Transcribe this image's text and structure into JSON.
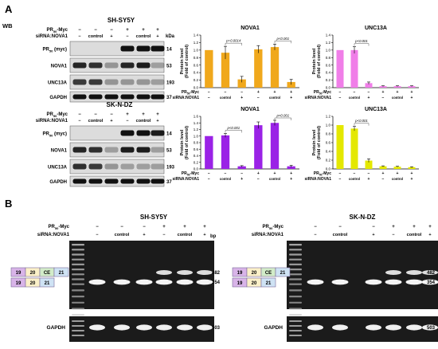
{
  "panel_a": {
    "label": "A",
    "wb_label": "WB",
    "kda_label": "kDa",
    "row_pr": "PR",
    "row_pr_sub": "50",
    "row_pr_tail": "-Myc",
    "row_sirna": "siRNA:NOVA1",
    "cols_pr": [
      "−",
      "−",
      "−",
      "+",
      "+",
      "+"
    ],
    "cols_sirna": [
      "−",
      "control",
      "+",
      "−",
      "control",
      "+"
    ],
    "sections": [
      {
        "cell_line": "SH-SY5Y",
        "blots": [
          {
            "name": "PR",
            "sub": "50",
            "tail": " (myc)",
            "kda": "14"
          },
          {
            "name": "NOVA1",
            "sub": "",
            "tail": "",
            "kda": "53"
          },
          {
            "name": "UNC13A",
            "sub": "",
            "tail": "",
            "kda": "193"
          },
          {
            "name": "GAPDH",
            "sub": "",
            "tail": "",
            "kda": "37"
          }
        ]
      },
      {
        "cell_line": "SK-N-DZ",
        "blots": [
          {
            "name": "PR",
            "sub": "50",
            "tail": " (myc)",
            "kda": "14"
          },
          {
            "name": "NOVA1",
            "sub": "",
            "tail": "",
            "kda": "53"
          },
          {
            "name": "UNC13A",
            "sub": "",
            "tail": "",
            "kda": "193"
          },
          {
            "name": "GAPDH",
            "sub": "",
            "tail": "",
            "kda": "37"
          }
        ]
      }
    ]
  },
  "panel_b": {
    "label": "B",
    "bp_label": "bp",
    "row_pr": "PR",
    "row_pr_sub": "50",
    "row_pr_tail": "-Myc",
    "row_sirna": "siRNA:NOVA1",
    "cols_pr": [
      "−",
      "−",
      "−",
      "+",
      "+",
      "+"
    ],
    "cols_sirna": [
      "−",
      "control",
      "+",
      "−",
      "control",
      "+"
    ],
    "band_upper": "482",
    "band_lower": "354",
    "gapdh_label": "GAPDH",
    "gapdh_bp": "503",
    "exons_long": [
      "19",
      "20",
      "CE",
      "21"
    ],
    "exons_short": [
      "19",
      "20",
      "21"
    ],
    "gels": [
      {
        "cell_line": "SH-SY5Y"
      },
      {
        "cell_line": "SK-N-DZ"
      }
    ]
  },
  "chart_data": [
    {
      "type": "bar",
      "title": "NOVA1",
      "ylabel": "Protein level (Fold of control)",
      "ylabel_lines": [
        "Protein level",
        "(Fold of control)"
      ],
      "ylim": [
        0,
        1.4
      ],
      "yticks": [
        "0.0",
        "0.2",
        "0.4",
        "0.6",
        "0.8",
        "1.0",
        "1.2",
        "1.4"
      ],
      "color": "#f0a81c",
      "values": [
        1.0,
        0.93,
        0.22,
        1.02,
        1.08,
        0.15
      ],
      "errors": [
        0.0,
        0.17,
        0.08,
        0.1,
        0.08,
        0.07
      ],
      "pvalues": [
        {
          "from": 1,
          "to": 2,
          "text": "p=0.0014"
        },
        {
          "from": 4,
          "to": 5,
          "text": "p<0.001"
        }
      ],
      "x_pr_label": "PR50-Myc",
      "x_pr": [
        "−",
        "−",
        "−",
        "+",
        "+",
        "+"
      ],
      "x_sirna_label": "siRNA:NOVA1",
      "x_sirna": [
        "−",
        "control",
        "+",
        "−",
        "control",
        "+"
      ]
    },
    {
      "type": "bar",
      "title": "UNC13A",
      "ylabel": "Protein level (Fold of control)",
      "ylabel_lines": [
        "Protein level",
        "(Fold of control)"
      ],
      "ylim": [
        0,
        1.4
      ],
      "yticks": [
        "0.0",
        "0.2",
        "0.4",
        "0.6",
        "0.8",
        "1.0",
        "1.2",
        "1.4"
      ],
      "color": "#f07ee8",
      "values": [
        1.0,
        1.0,
        0.12,
        0.04,
        0.04,
        0.04
      ],
      "errors": [
        0.0,
        0.09,
        0.03,
        0.01,
        0.01,
        0.01
      ],
      "pvalues": [
        {
          "from": 1,
          "to": 2,
          "text": "p<0.001"
        }
      ],
      "x_pr_label": "PR50-Myc",
      "x_pr": [
        "−",
        "−",
        "−",
        "+",
        "+",
        "+"
      ],
      "x_sirna_label": "siRNA:NOVA1",
      "x_sirna": [
        "−",
        "control",
        "+",
        "−",
        "control",
        "+"
      ]
    },
    {
      "type": "bar",
      "title": "NOVA1",
      "ylabel": "Protein level (Fold of control)",
      "ylabel_lines": [
        "Protein level",
        "(Fold of control)"
      ],
      "ylim": [
        0,
        1.6
      ],
      "yticks": [
        "0.0",
        "0.2",
        "0.4",
        "0.6",
        "0.8",
        "1.0",
        "1.2",
        "1.4",
        "1.6"
      ],
      "color": "#9a22e6",
      "values": [
        1.0,
        1.02,
        0.08,
        1.33,
        1.4,
        0.08
      ],
      "errors": [
        0.0,
        0.06,
        0.02,
        0.1,
        0.08,
        0.03
      ],
      "pvalues": [
        {
          "from": 1,
          "to": 2,
          "text": "p<0.001"
        },
        {
          "from": 4,
          "to": 5,
          "text": "p<0.001"
        }
      ],
      "x_pr_label": "PR50-Myc",
      "x_pr": [
        "−",
        "−",
        "−",
        "+",
        "+",
        "+"
      ],
      "x_sirna_label": "siRNA:NOVA1",
      "x_sirna": [
        "−",
        "control",
        "+",
        "−",
        "control",
        "+"
      ]
    },
    {
      "type": "bar",
      "title": "UNC13A",
      "ylabel": "Protein level (Fold of control)",
      "ylabel_lines": [
        "Protein level",
        "(Fold of control)"
      ],
      "ylim": [
        0,
        1.2
      ],
      "yticks": [
        "0.0",
        "0.2",
        "0.4",
        "0.6",
        "0.8",
        "1.0",
        "1.2"
      ],
      "color": "#e4e800",
      "values": [
        1.0,
        0.92,
        0.19,
        0.06,
        0.05,
        0.04
      ],
      "errors": [
        0.0,
        0.05,
        0.04,
        0.01,
        0.01,
        0.01
      ],
      "pvalues": [
        {
          "from": 1,
          "to": 2,
          "text": "p<0.001"
        }
      ],
      "x_pr_label": "PR50-Myc",
      "x_pr": [
        "−",
        "−",
        "−",
        "+",
        "+",
        "+"
      ],
      "x_sirna_label": "siRNA:NOVA1",
      "x_sirna": [
        "−",
        "control",
        "+",
        "−",
        "control",
        "+"
      ]
    }
  ]
}
